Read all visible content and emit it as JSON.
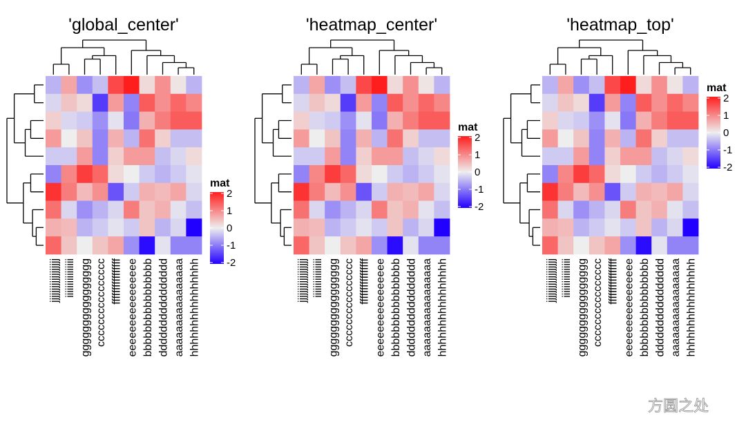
{
  "chart_data": [
    {
      "type": "heatmap",
      "title": "'global_center'",
      "legend": {
        "title": "mat",
        "ticks": [
          2,
          1,
          0,
          -1,
          -2
        ],
        "placement": "bottom-right"
      },
      "color_scale": {
        "low": "#2200ff",
        "mid": "#eeeeee",
        "high": "#ff1e1e",
        "limits": [
          -2,
          2
        ]
      },
      "col_labels": [
        "jjjjjjjjjjjjjjjjjj",
        "iiiiiiiiiiiiiiii",
        "gggggggggggggggg",
        "cccccccccccccccc",
        "ffffffffffffffff",
        "eeeeeeeeeeeeeeee",
        "bbbbbbbbbbbbbbbb",
        "dddddddddddddddd",
        "aaaaaaaaaaaaaaaa",
        "hhhhhhhhhhhhhhhh"
      ],
      "rows": 10,
      "values": [
        [
          -0.5,
          0.7,
          -0.8,
          -0.4,
          1.6,
          2.0,
          0.2,
          0.9,
          0.1,
          -0.5
        ],
        [
          -0.2,
          0.4,
          0.2,
          -1.5,
          0.8,
          -0.9,
          1.4,
          0.9,
          1.3,
          1.0
        ],
        [
          0.3,
          -0.2,
          -0.3,
          -0.8,
          -0.1,
          -1.0,
          0.6,
          1.1,
          1.4,
          1.4
        ],
        [
          0.8,
          0.0,
          0.4,
          -0.9,
          0.6,
          -0.5,
          1.2,
          0.3,
          -0.4,
          -0.4
        ],
        [
          -0.3,
          -0.3,
          0.8,
          -0.9,
          0.3,
          0.8,
          0.8,
          -0.4,
          -0.2,
          0.2
        ],
        [
          -0.9,
          1.0,
          1.7,
          1.3,
          0.2,
          0.0,
          -0.3,
          -0.5,
          -0.3,
          -0.1
        ],
        [
          1.8,
          1.1,
          0.5,
          0.9,
          -1.3,
          -0.3,
          0.6,
          0.5,
          0.7,
          -0.2
        ],
        [
          1.2,
          -0.2,
          -0.8,
          -0.5,
          -0.2,
          1.1,
          0.4,
          0.6,
          -0.1,
          -0.4
        ],
        [
          0.6,
          0.5,
          -0.5,
          -0.3,
          -0.1,
          -0.3,
          0.4,
          -0.5,
          -0.2,
          -2.2
        ],
        [
          1.3,
          0.4,
          0.0,
          0.4,
          0.7,
          -0.8,
          -1.9,
          -0.1,
          -0.9,
          -0.9
        ]
      ]
    },
    {
      "type": "heatmap",
      "title": "'heatmap_center'",
      "legend": {
        "title": "mat",
        "ticks": [
          2,
          1,
          0,
          -1,
          -2
        ],
        "placement": "middle-right"
      },
      "color_scale": {
        "low": "#2200ff",
        "mid": "#eeeeee",
        "high": "#ff1e1e",
        "limits": [
          -2,
          2
        ]
      },
      "col_labels": [
        "jjjjjjjjjjjjjjjjjj",
        "iiiiiiiiiiiiiiii",
        "gggggggggggggggg",
        "cccccccccccccccc",
        "ffffffffffffffff",
        "eeeeeeeeeeeeeeee",
        "bbbbbbbbbbbbbbbb",
        "dddddddddddddddd",
        "aaaaaaaaaaaaaaaa",
        "hhhhhhhhhhhhhhhh"
      ],
      "rows": 10,
      "values": [
        [
          -0.5,
          0.7,
          -0.8,
          -0.4,
          1.6,
          2.0,
          0.2,
          0.9,
          0.1,
          -0.5
        ],
        [
          -0.2,
          0.4,
          0.2,
          -1.5,
          0.8,
          -0.9,
          1.4,
          0.9,
          1.3,
          1.0
        ],
        [
          0.3,
          -0.2,
          -0.3,
          -0.8,
          -0.1,
          -1.0,
          0.6,
          1.1,
          1.4,
          1.4
        ],
        [
          0.8,
          0.0,
          0.4,
          -0.9,
          0.6,
          -0.5,
          1.2,
          0.3,
          -0.4,
          -0.4
        ],
        [
          -0.3,
          -0.3,
          0.8,
          -0.9,
          0.3,
          0.8,
          0.8,
          -0.4,
          -0.2,
          0.2
        ],
        [
          -0.9,
          1.0,
          1.7,
          1.3,
          0.2,
          0.0,
          -0.3,
          -0.5,
          -0.3,
          -0.1
        ],
        [
          1.8,
          1.1,
          0.5,
          0.9,
          -1.3,
          -0.3,
          0.6,
          0.5,
          0.7,
          -0.2
        ],
        [
          1.2,
          -0.2,
          -0.8,
          -0.5,
          -0.2,
          1.1,
          0.4,
          0.6,
          -0.1,
          -0.4
        ],
        [
          0.6,
          0.5,
          -0.5,
          -0.3,
          -0.1,
          -0.3,
          0.4,
          -0.5,
          -0.2,
          -2.2
        ],
        [
          1.3,
          0.4,
          0.0,
          0.4,
          0.7,
          -0.8,
          -1.9,
          -0.1,
          -0.9,
          -0.9
        ]
      ]
    },
    {
      "type": "heatmap",
      "title": "'heatmap_top'",
      "legend": {
        "title": "mat",
        "ticks": [
          2,
          1,
          0,
          -1,
          -2
        ],
        "placement": "top-right"
      },
      "color_scale": {
        "low": "#2200ff",
        "mid": "#eeeeee",
        "high": "#ff1e1e",
        "limits": [
          -2,
          2
        ]
      },
      "col_labels": [
        "jjjjjjjjjjjjjjjjjj",
        "iiiiiiiiiiiiiiii",
        "gggggggggggggggg",
        "cccccccccccccccc",
        "ffffffffffffffff",
        "eeeeeeeeeeeeeeee",
        "bbbbbbbbbbbbbbbb",
        "dddddddddddddddd",
        "aaaaaaaaaaaaaaaa",
        "hhhhhhhhhhhhhhhh"
      ],
      "rows": 10,
      "values": [
        [
          -0.5,
          0.7,
          -0.8,
          -0.4,
          1.6,
          2.0,
          0.2,
          0.9,
          0.1,
          -0.5
        ],
        [
          -0.2,
          0.4,
          0.2,
          -1.5,
          0.8,
          -0.9,
          1.4,
          0.9,
          1.3,
          1.0
        ],
        [
          0.3,
          -0.2,
          -0.3,
          -0.8,
          -0.1,
          -1.0,
          0.6,
          1.1,
          1.4,
          1.4
        ],
        [
          0.8,
          0.0,
          0.4,
          -0.9,
          0.6,
          -0.5,
          1.2,
          0.3,
          -0.4,
          -0.4
        ],
        [
          -0.3,
          -0.3,
          0.8,
          -0.9,
          0.3,
          0.8,
          0.8,
          -0.4,
          -0.2,
          0.2
        ],
        [
          -0.9,
          1.0,
          1.7,
          1.3,
          0.2,
          0.0,
          -0.3,
          -0.5,
          -0.3,
          -0.1
        ],
        [
          1.8,
          1.1,
          0.5,
          0.9,
          -1.3,
          -0.3,
          0.6,
          0.5,
          0.7,
          -0.2
        ],
        [
          1.2,
          -0.2,
          -0.8,
          -0.5,
          -0.2,
          1.1,
          0.4,
          0.6,
          -0.1,
          -0.4
        ],
        [
          0.6,
          0.5,
          -0.5,
          -0.3,
          -0.1,
          -0.3,
          0.4,
          -0.5,
          -0.2,
          -2.2
        ],
        [
          1.3,
          0.4,
          0.0,
          0.4,
          0.7,
          -0.8,
          -1.9,
          -0.1,
          -0.9,
          -0.9
        ]
      ]
    }
  ],
  "watermark": {
    "text": "方圆之处"
  }
}
